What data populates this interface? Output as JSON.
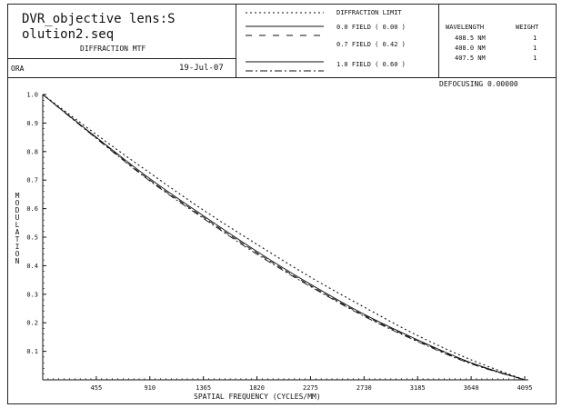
{
  "header": {
    "title_line1": "DVR_objective lens:S",
    "title_line2": "olution2.seq",
    "subtitle": "DIFFRACTION MTF",
    "org": "ORA",
    "date": "19-Jul-07"
  },
  "legend": {
    "limit": "DIFFRACTION LIMIT",
    "fields": [
      {
        "label": "0.0 FIELD ( 0.00 )"
      },
      {
        "label": "0.7 FIELD ( 0.42 )"
      },
      {
        "label": "1.0 FIELD ( 0.60 )"
      }
    ]
  },
  "wavelengths": {
    "col_wavelength": "WAVELENGTH",
    "col_weight": "WEIGHT",
    "rows": [
      {
        "wl": "408.5 NM",
        "w": "1"
      },
      {
        "wl": "408.0 NM",
        "w": "1"
      },
      {
        "wl": "407.5 NM",
        "w": "1"
      }
    ]
  },
  "defocusing": "DEFOCUSING 0.00000",
  "chart_data": {
    "type": "line",
    "xlabel": "SPATIAL FREQUENCY (CYCLES/MM)",
    "ylabel": "MODULATION",
    "xlim": [
      0,
      4095
    ],
    "ylim": [
      0,
      1.0
    ],
    "x_ticks": [
      455,
      910,
      1365,
      1820,
      2275,
      2730,
      3185,
      3640,
      4095
    ],
    "y_ticks": [
      0.1,
      0.2,
      0.3,
      0.4,
      0.5,
      0.6,
      0.7,
      0.8,
      0.9,
      1.0
    ],
    "y_tick_labels": [
      "0.1",
      "0.2",
      "0.3",
      "0.4",
      "0.5",
      "0.6",
      "0.7",
      "0.8",
      "0.9",
      "1.0"
    ],
    "x_tick_labels": [
      "455",
      "910",
      "1365",
      "1820",
      "2275",
      "2730",
      "3185",
      "3640",
      "4095"
    ],
    "series": [
      {
        "name": "DIFFRACTION LIMIT",
        "style": "dotted",
        "x": [
          0,
          455,
          910,
          1365,
          1820,
          2275,
          2730,
          3185,
          3640,
          4095
        ],
        "y": [
          1.0,
          0.86,
          0.725,
          0.595,
          0.475,
          0.36,
          0.255,
          0.155,
          0.07,
          0.0
        ]
      },
      {
        "name": "0.0 FIELD ( 0.00 )",
        "style": "solid",
        "x": [
          0,
          455,
          910,
          1365,
          1820,
          2275,
          2730,
          3185,
          3640,
          4095
        ],
        "y": [
          1.0,
          0.85,
          0.705,
          0.575,
          0.45,
          0.335,
          0.23,
          0.14,
          0.06,
          0.0
        ]
      },
      {
        "name": "0.7 FIELD ( 0.42 )",
        "style": "dashed",
        "x": [
          0,
          455,
          910,
          1365,
          1820,
          2275,
          2730,
          3185,
          3640,
          4095
        ],
        "y": [
          1.0,
          0.848,
          0.7,
          0.57,
          0.445,
          0.33,
          0.226,
          0.137,
          0.058,
          0.0
        ]
      },
      {
        "name": "1.0 FIELD ( 0.60 )",
        "style": "dashdot",
        "x": [
          0,
          455,
          910,
          1365,
          1820,
          2275,
          2730,
          3185,
          3640,
          4095
        ],
        "y": [
          1.0,
          0.846,
          0.697,
          0.566,
          0.44,
          0.327,
          0.223,
          0.134,
          0.056,
          0.0
        ]
      }
    ]
  }
}
